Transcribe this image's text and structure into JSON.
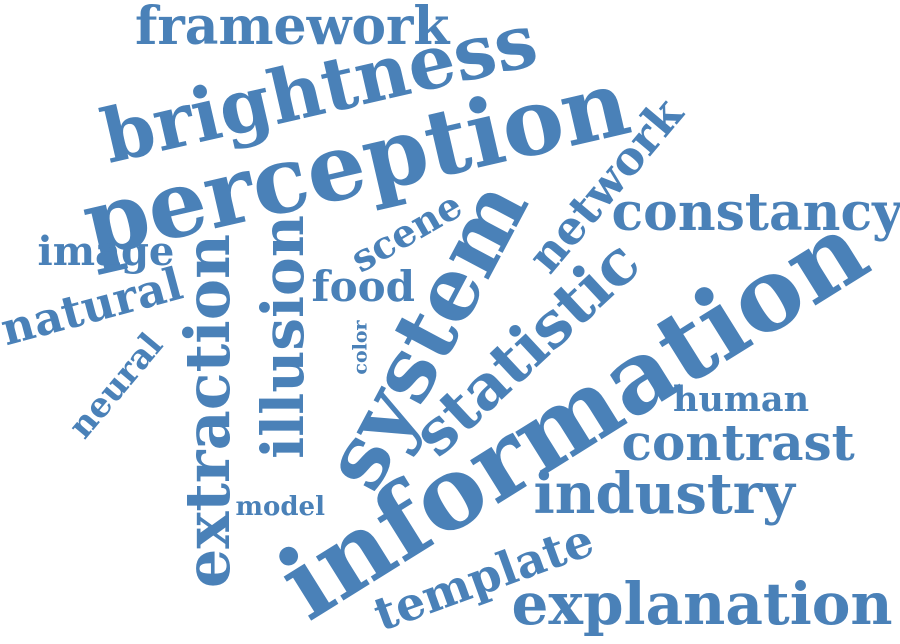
{
  "word_cloud": {
    "color": "#4a81b8",
    "words": [
      "framework",
      "brightness",
      "perception",
      "constancy",
      "network",
      "image",
      "scene",
      "extraction",
      "illusion",
      "natural",
      "food",
      "system",
      "statistic",
      "information",
      "neural",
      "color",
      "human",
      "contrast",
      "industry",
      "model",
      "template",
      "explanation"
    ]
  }
}
